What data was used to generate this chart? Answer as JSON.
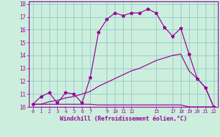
{
  "background_color": "#cceedd",
  "grid_color": "#99cccc",
  "line_color": "#990099",
  "xlim": [
    -0.5,
    22.5
  ],
  "ylim": [
    10.0,
    18.2
  ],
  "yticks": [
    10,
    11,
    12,
    13,
    14,
    15,
    16,
    17,
    18
  ],
  "xtick_positions": [
    0,
    1,
    2,
    3,
    4,
    5,
    6,
    7,
    9,
    10,
    11,
    12,
    15,
    17,
    18,
    19,
    20,
    21,
    22
  ],
  "xtick_labels": [
    "0",
    "1",
    "2",
    "3",
    "4",
    "5",
    "6",
    "7",
    "9",
    "10",
    "11",
    "12",
    "15",
    "17",
    "18",
    "19",
    "20",
    "21",
    "22"
  ],
  "xlabel": "Windchill (Refroidissement éolien,°C)",
  "hours": [
    0,
    1,
    2,
    3,
    4,
    5,
    6,
    7,
    8,
    9,
    10,
    11,
    12,
    13,
    14,
    15,
    16,
    17,
    18,
    19,
    20,
    21,
    22
  ],
  "temp_line": [
    10.2,
    10.8,
    11.1,
    10.3,
    11.1,
    11.0,
    10.3,
    12.3,
    15.8,
    16.8,
    17.3,
    17.1,
    17.3,
    17.3,
    17.6,
    17.3,
    16.2,
    15.5,
    16.1,
    14.1,
    12.2,
    11.5,
    10.0
  ],
  "upper_line": [
    10.2,
    10.2,
    10.4,
    10.5,
    10.7,
    10.8,
    11.0,
    11.2,
    11.6,
    11.9,
    12.2,
    12.5,
    12.8,
    13.0,
    13.3,
    13.6,
    13.8,
    14.0,
    14.1,
    12.8,
    12.2,
    11.5,
    10.0
  ],
  "lower_line": [
    10.2,
    10.2,
    10.2,
    10.2,
    10.2,
    10.2,
    10.2,
    10.2,
    10.15,
    10.15,
    10.15,
    10.15,
    10.15,
    10.15,
    10.15,
    10.15,
    10.15,
    10.15,
    10.15,
    10.0,
    10.0,
    10.0,
    10.0
  ]
}
